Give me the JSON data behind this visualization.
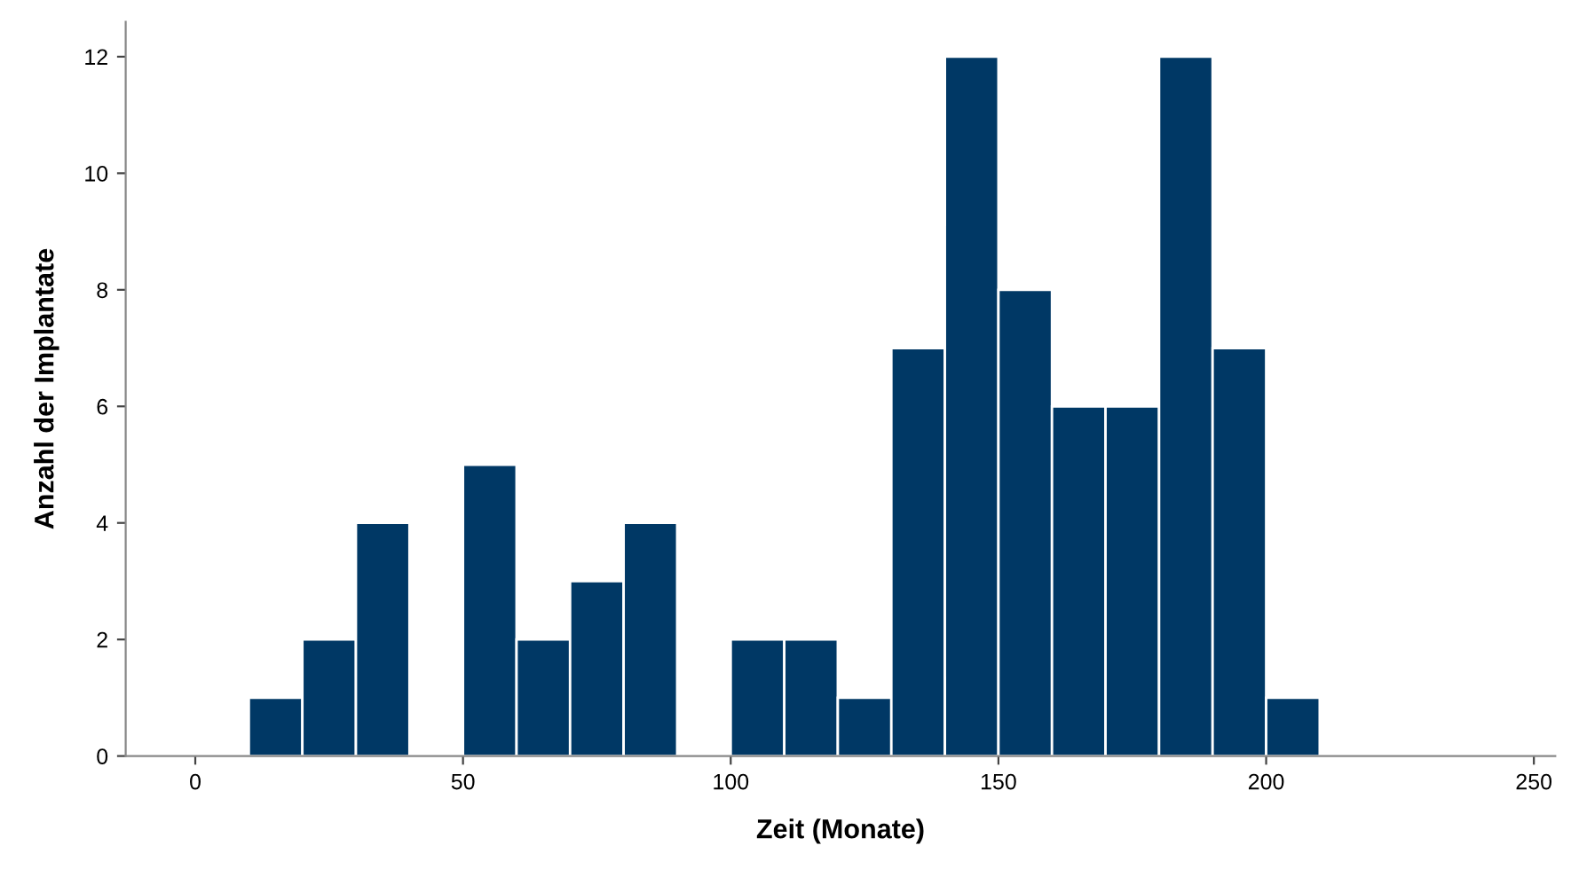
{
  "chart_data": {
    "type": "histogram",
    "xlabel": "Zeit (Monate)",
    "ylabel": "Anzahl der Implantate",
    "bins": [
      10,
      20,
      30,
      40,
      50,
      60,
      70,
      80,
      90,
      100,
      110,
      120,
      130,
      140,
      150,
      160,
      170,
      180,
      190,
      200,
      210
    ],
    "values": [
      1,
      2,
      4,
      0,
      5,
      2,
      3,
      4,
      0,
      2,
      2,
      1,
      7,
      12,
      8,
      6,
      6,
      12,
      7,
      1
    ],
    "color": "#003865",
    "xlim": [
      -13,
      254
    ],
    "xticks": [
      0,
      50,
      100,
      150,
      200,
      250
    ],
    "ylim": [
      0,
      12.6
    ],
    "yticks": [
      0,
      2,
      4,
      6,
      8,
      10,
      12
    ],
    "grid": false,
    "legend": false
  }
}
